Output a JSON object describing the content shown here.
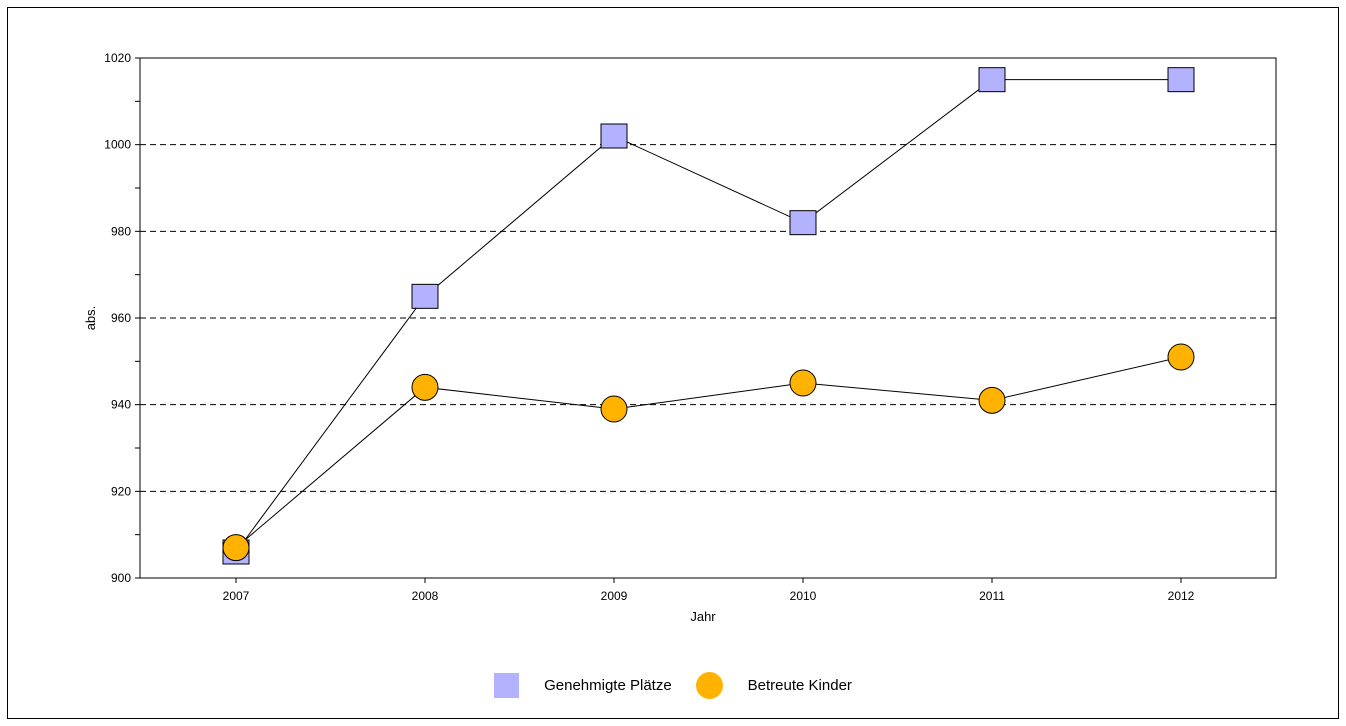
{
  "chart_data": {
    "type": "line",
    "categories": [
      "2007",
      "2008",
      "2009",
      "2010",
      "2011",
      "2012"
    ],
    "xlabel": "Jahr",
    "ylabel": "abs.",
    "ylim": [
      900,
      1020
    ],
    "yticks": [
      "900",
      "920",
      "940",
      "960",
      "980",
      "1000",
      "1020"
    ],
    "grid": "horizontal dashed",
    "legend_position": "bottom",
    "series": [
      {
        "name": "Genehmigte Plätze",
        "marker": "square",
        "color": "#b2b2ff",
        "values": [
          906,
          965,
          1002,
          982,
          1015,
          1015
        ]
      },
      {
        "name": "Betreute Kinder",
        "marker": "circle",
        "color": "#ffb300",
        "values": [
          907,
          944,
          939,
          945,
          941,
          951
        ]
      }
    ]
  }
}
